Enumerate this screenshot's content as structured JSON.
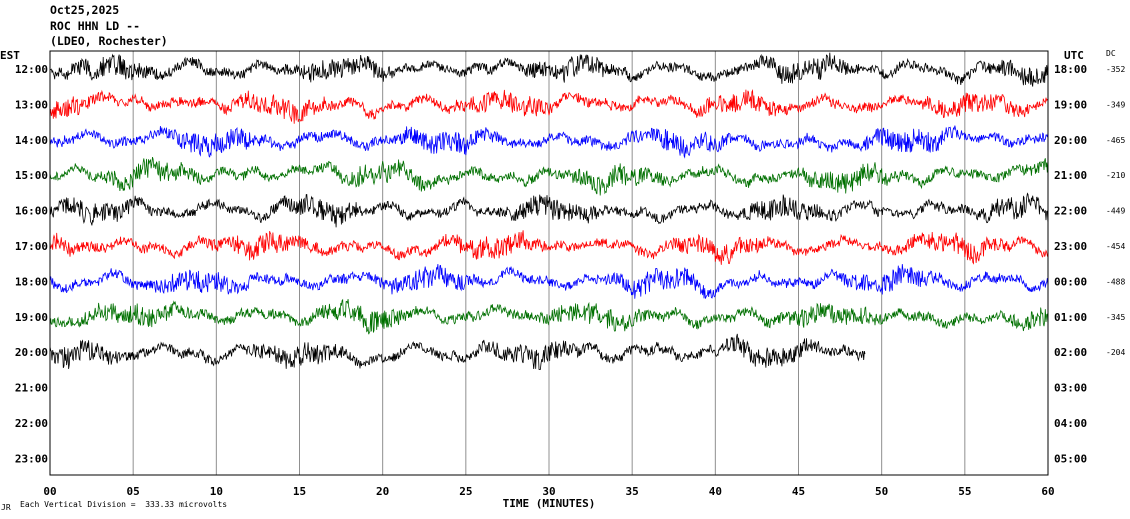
{
  "header": {
    "date": "Oct25,2025",
    "station": "ROC HHN LD --",
    "network": "(LDEO, Rochester)"
  },
  "left_axis_label": "EST",
  "right_axis_label": "UTC",
  "dc_label": "DC",
  "footer": {
    "logo_text": "JR",
    "scale_text": "Each Vertical Division =  333.33 microvolts"
  },
  "colors": {
    "cycle": [
      "#000000",
      "#ff0000",
      "#0000ff",
      "#007000"
    ],
    "grid": "#909090"
  },
  "chart_data": {
    "type": "line",
    "title": "",
    "xlabel": "TIME (MINUTES)",
    "x_range": [
      0,
      60
    ],
    "x_ticks": [
      "00",
      "05",
      "10",
      "15",
      "20",
      "25",
      "30",
      "35",
      "40",
      "45",
      "50",
      "55",
      "60"
    ],
    "traces": [
      {
        "est": "12:00",
        "utc": "18:00",
        "dc": "-352",
        "color": "#000000",
        "end_minute": 60
      },
      {
        "est": "13:00",
        "utc": "19:00",
        "dc": "-349",
        "color": "#ff0000",
        "end_minute": 60
      },
      {
        "est": "14:00",
        "utc": "20:00",
        "dc": "-465",
        "color": "#0000ff",
        "end_minute": 60
      },
      {
        "est": "15:00",
        "utc": "21:00",
        "dc": "-210",
        "color": "#007000",
        "end_minute": 60
      },
      {
        "est": "16:00",
        "utc": "22:00",
        "dc": "-449",
        "color": "#000000",
        "end_minute": 60
      },
      {
        "est": "17:00",
        "utc": "23:00",
        "dc": "-454",
        "color": "#ff0000",
        "end_minute": 60
      },
      {
        "est": "18:00",
        "utc": "00:00",
        "dc": "-488",
        "color": "#0000ff",
        "end_minute": 60
      },
      {
        "est": "19:00",
        "utc": "01:00",
        "dc": "-345",
        "color": "#007000",
        "end_minute": 60
      },
      {
        "est": "20:00",
        "utc": "02:00",
        "dc": "-204",
        "color": "#000000",
        "end_minute": 49
      },
      {
        "est": "21:00",
        "utc": "03:00",
        "dc": "",
        "color": "#ff0000",
        "end_minute": 0
      },
      {
        "est": "22:00",
        "utc": "04:00",
        "dc": "",
        "color": "#0000ff",
        "end_minute": 0
      },
      {
        "est": "23:00",
        "utc": "05:00",
        "dc": "",
        "color": "#007000",
        "end_minute": 0
      }
    ]
  }
}
